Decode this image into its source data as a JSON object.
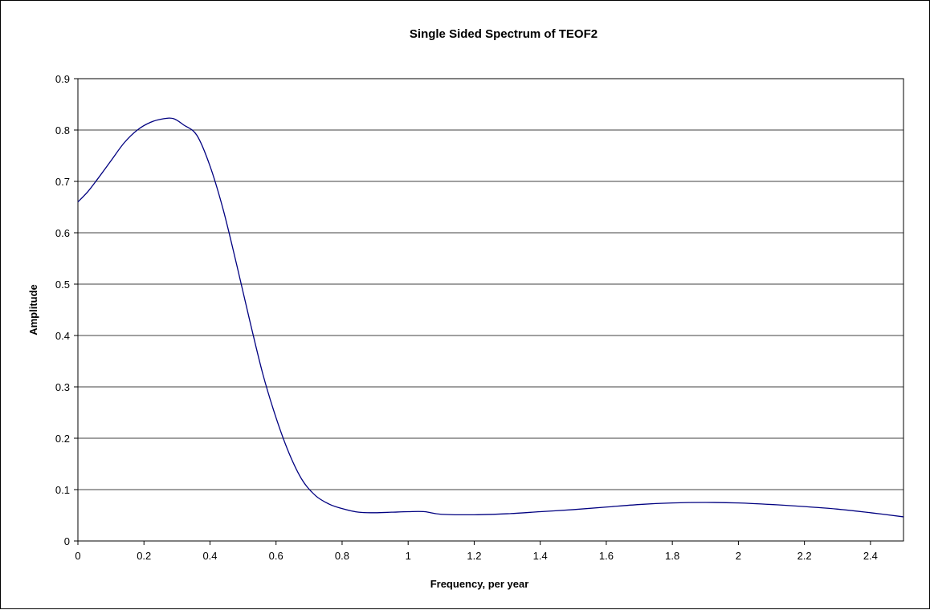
{
  "chart_data": {
    "type": "line",
    "title": "Single Sided Spectrum of TEOF2",
    "xlabel": "Frequency, per year",
    "ylabel": "Amplitude",
    "xlim": [
      0,
      2.5
    ],
    "ylim": [
      0,
      0.9
    ],
    "xticks": [
      "0",
      "0.2",
      "0.4",
      "0.6",
      "0.8",
      "1",
      "1.2",
      "1.4",
      "1.6",
      "1.8",
      "2",
      "2.2",
      "2.4"
    ],
    "yticks": [
      "0",
      "0.1",
      "0.2",
      "0.3",
      "0.4",
      "0.5",
      "0.6",
      "0.7",
      "0.8",
      "0.9"
    ],
    "grid": "horizontal",
    "legend": "none",
    "line_color": "#000080",
    "series": [
      {
        "x": [
          0,
          0.03,
          0.06,
          0.1,
          0.14,
          0.18,
          0.22,
          0.26,
          0.29,
          0.32,
          0.36,
          0.4,
          0.44,
          0.48,
          0.52,
          0.56,
          0.6,
          0.64,
          0.68,
          0.72,
          0.76,
          0.8,
          0.85,
          0.9,
          0.95,
          1.0,
          1.05,
          1.1,
          1.2,
          1.3,
          1.4,
          1.5,
          1.6,
          1.7,
          1.8,
          1.9,
          2.0,
          2.1,
          2.2,
          2.3,
          2.4,
          2.5
        ],
        "y": [
          0.66,
          0.68,
          0.705,
          0.74,
          0.775,
          0.8,
          0.815,
          0.822,
          0.822,
          0.81,
          0.79,
          0.73,
          0.645,
          0.54,
          0.43,
          0.325,
          0.24,
          0.17,
          0.118,
          0.088,
          0.072,
          0.063,
          0.056,
          0.055,
          0.056,
          0.057,
          0.057,
          0.052,
          0.051,
          0.053,
          0.057,
          0.061,
          0.066,
          0.071,
          0.074,
          0.075,
          0.074,
          0.071,
          0.067,
          0.062,
          0.055,
          0.047
        ]
      }
    ]
  }
}
